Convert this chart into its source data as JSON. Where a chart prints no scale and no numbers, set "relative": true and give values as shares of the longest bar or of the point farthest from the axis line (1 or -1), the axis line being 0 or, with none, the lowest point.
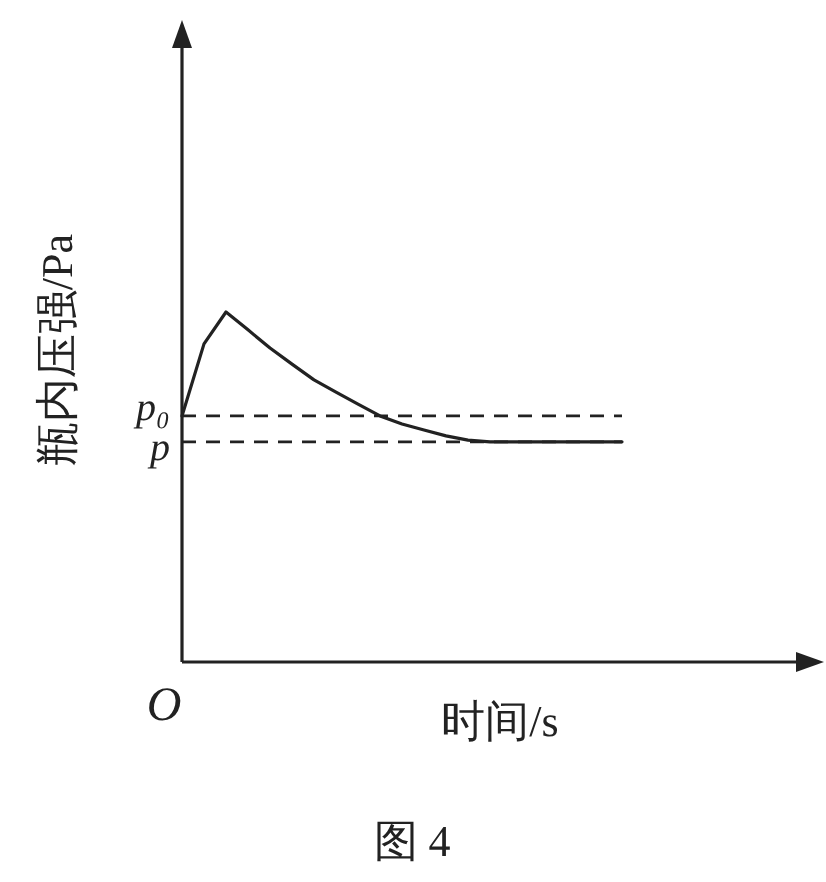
{
  "chart_data": {
    "type": "line",
    "relative": true,
    "xlabel": "时间/s",
    "ylabel": "瓶内压强/Pa",
    "categories": [
      null,
      null,
      null,
      null,
      null,
      null,
      null,
      null,
      null,
      null,
      null,
      null,
      null,
      null,
      null,
      null,
      null,
      null,
      null,
      null,
      null
    ],
    "series": [
      {
        "color": "#222222",
        "values": [
          0.703,
          0.909,
          1.0,
          0.949,
          0.897,
          0.851,
          0.806,
          0.771,
          0.737,
          0.703,
          0.68,
          0.663,
          0.646,
          0.634,
          0.629,
          0.629,
          0.629,
          0.629,
          0.629,
          0.629,
          0.629
        ]
      }
    ],
    "line_style": "solid",
    "marker": "none",
    "ref_lines": [
      {
        "axis": "y",
        "value": 0.703,
        "label": "p₀",
        "line_style": "dashed",
        "color": "#222222"
      },
      {
        "axis": "y",
        "value": 0.629,
        "label": "p",
        "line_style": "dashed",
        "color": "#222222"
      }
    ],
    "annotations": [
      "O",
      "图 4"
    ]
  }
}
